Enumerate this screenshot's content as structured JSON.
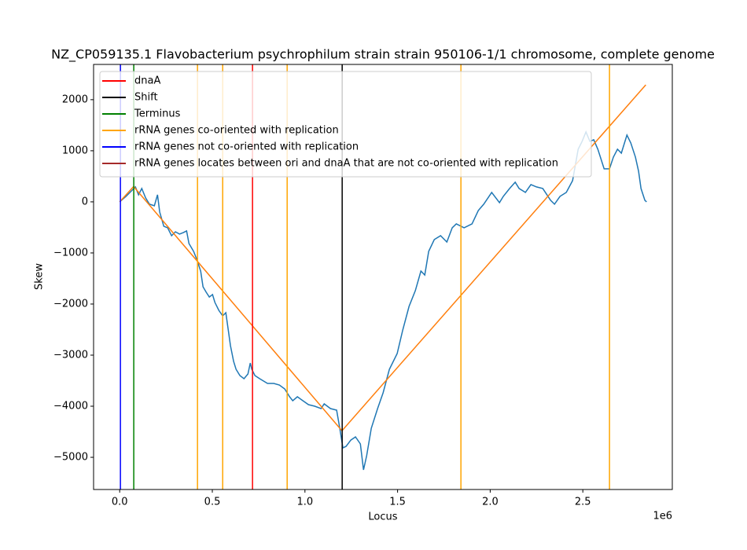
{
  "chart_data": {
    "type": "line",
    "title": "NZ_CP059135.1 Flavobacterium psychrophilum strain strain 950106-1/1 chromosome, complete genome",
    "xlabel": "Locus",
    "ylabel": "Skew",
    "x_offset_label": "1e6",
    "xlim": [
      -141000,
      2983000
    ],
    "ylim": [
      -5630,
      2690
    ],
    "xticks": [
      {
        "value": 0,
        "label": "0.0"
      },
      {
        "value": 500000,
        "label": "0.5"
      },
      {
        "value": 1000000,
        "label": "1.0"
      },
      {
        "value": 1500000,
        "label": "1.5"
      },
      {
        "value": 2000000,
        "label": "2.0"
      },
      {
        "value": 2500000,
        "label": "2.5"
      }
    ],
    "yticks": [
      {
        "value": -5000,
        "label": "−5000"
      },
      {
        "value": -4000,
        "label": "−4000"
      },
      {
        "value": -3000,
        "label": "−3000"
      },
      {
        "value": -2000,
        "label": "−2000"
      },
      {
        "value": -1000,
        "label": "−1000"
      },
      0,
      1000,
      2000
    ],
    "series": [
      {
        "color": "#1f77b4",
        "x": [
          0,
          34000,
          64000,
          85000,
          102000,
          119000,
          140000,
          161000,
          187000,
          204000,
          216000,
          238000,
          259000,
          280000,
          301000,
          323000,
          344000,
          361000,
          374000,
          399000,
          416000,
          437000,
          450000,
          467000,
          484000,
          501000,
          514000,
          535000,
          556000,
          573000,
          586000,
          598000,
          615000,
          628000,
          649000,
          671000,
          692000,
          705000,
          713000,
          730000,
          756000,
          798000,
          832000,
          862000,
          891000,
          917000,
          934000,
          959000,
          989000,
          1019000,
          1053000,
          1087000,
          1104000,
          1138000,
          1171000,
          1188000,
          1205000,
          1222000,
          1248000,
          1273000,
          1299000,
          1316000,
          1333000,
          1358000,
          1392000,
          1422000,
          1456000,
          1498000,
          1528000,
          1562000,
          1596000,
          1626000,
          1647000,
          1668000,
          1698000,
          1732000,
          1766000,
          1795000,
          1817000,
          1859000,
          1902000,
          1936000,
          1965000,
          2008000,
          2050000,
          2071000,
          2105000,
          2135000,
          2156000,
          2190000,
          2220000,
          2250000,
          2284000,
          2326000,
          2347000,
          2377000,
          2411000,
          2445000,
          2475000,
          2496000,
          2517000,
          2538000,
          2559000,
          2581000,
          2615000,
          2644000,
          2665000,
          2687000,
          2708000,
          2738000,
          2759000,
          2784000,
          2801000,
          2814000,
          2835000,
          2844000
        ],
        "values": [
          0,
          108,
          215,
          292,
          138,
          262,
          77,
          -46,
          -77,
          138,
          -200,
          -477,
          -508,
          -662,
          -585,
          -631,
          -600,
          -569,
          -815,
          -969,
          -1123,
          -1354,
          -1662,
          -1769,
          -1862,
          -1815,
          -1969,
          -2123,
          -2231,
          -2169,
          -2508,
          -2815,
          -3123,
          -3277,
          -3400,
          -3462,
          -3369,
          -3154,
          -3277,
          -3400,
          -3462,
          -3554,
          -3554,
          -3585,
          -3662,
          -3815,
          -3892,
          -3815,
          -3892,
          -3969,
          -4000,
          -4046,
          -3954,
          -4046,
          -4077,
          -4431,
          -4815,
          -4785,
          -4662,
          -4600,
          -4738,
          -5246,
          -4969,
          -4431,
          -4046,
          -3738,
          -3277,
          -2969,
          -2508,
          -2046,
          -1738,
          -1354,
          -1431,
          -969,
          -738,
          -662,
          -785,
          -508,
          -431,
          -508,
          -431,
          -169,
          -46,
          185,
          -15,
          108,
          262,
          385,
          262,
          185,
          338,
          292,
          262,
          31,
          -46,
          108,
          185,
          415,
          1031,
          1185,
          1369,
          1185,
          1215,
          1031,
          646,
          646,
          877,
          1031,
          954,
          1308,
          1154,
          877,
          600,
          262,
          31,
          0
        ]
      },
      {
        "color": "#ff7f0e",
        "x": [
          0,
          75000,
          1200000,
          2840000
        ],
        "values": [
          0,
          300,
          -4480,
          2290
        ]
      }
    ],
    "markers": [
      {
        "name": "dnaA",
        "color": "#ff0000",
        "x": [
          717000
        ]
      },
      {
        "name": "Shift",
        "color": "#000000",
        "x": [
          1201000
        ]
      },
      {
        "name": "Terminus",
        "color": "#008000",
        "x": [
          76000
        ]
      },
      {
        "name": "rRNA genes co-oriented with replication",
        "color": "#ffa500",
        "x": [
          420000,
          556000,
          904000,
          1842000,
          2644000
        ]
      },
      {
        "name": "rRNA genes not co-oriented with replication",
        "color": "#0000ff",
        "x": [
          4000
        ]
      },
      {
        "name": "rRNA genes locates between ori and dnaA that are not co-oriented with replication",
        "color": "#a52a2a",
        "x": []
      }
    ]
  }
}
